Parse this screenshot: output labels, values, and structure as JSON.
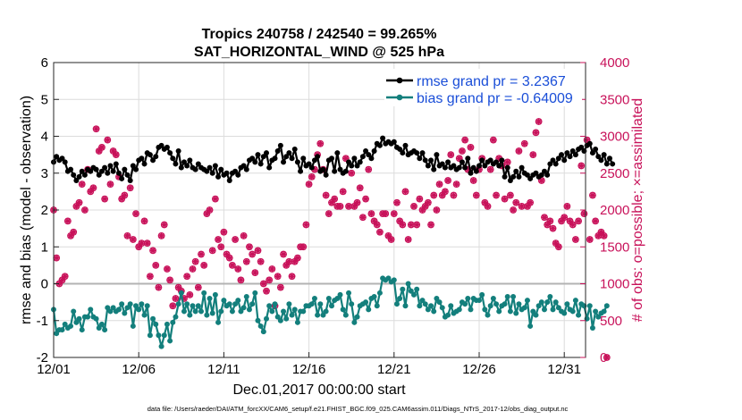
{
  "chart_data": {
    "type": "line",
    "title_line1": "Tropics 240758 / 242540 = 99.265%",
    "title_line2": "SAT_HORIZONTAL_WIND @ 525 hPa",
    "xlabel": "Dec.01,2017 00:00:00 start",
    "ylabel_left": "rmse and bias (model - observation)",
    "ylabel_right": "# of obs: o=possible; ×=assimilated",
    "footnote": "data file: /Users/raeder/DAI/ATM_forcXX/CAM6_setup/f.e21.FHIST_BGC.f09_025.CAM6assim.011/Diags_NTrS_2017-12/obs_diag_output.nc",
    "x_tick_labels": [
      "12/01",
      "12/06",
      "12/11",
      "12/16",
      "12/21",
      "12/26",
      "12/31"
    ],
    "x_tick_days": [
      0,
      5,
      10,
      15,
      20,
      25,
      30
    ],
    "xlim_days": [
      0,
      31.25
    ],
    "ylim_left": [
      -2,
      6
    ],
    "yticks_left": [
      "-2",
      "-1",
      "0",
      "1",
      "2",
      "3",
      "4",
      "5",
      "6"
    ],
    "ylim_right": [
      0,
      4000
    ],
    "yticks_right": [
      "0",
      "500",
      "1000",
      "1500",
      "2000",
      "2500",
      "3000",
      "3500",
      "4000"
    ],
    "zero_line": 0,
    "legend": {
      "position": "top-right",
      "rmse_label": "rmse grand pr = 3.2367",
      "bias_label": "bias grand pr = -0.64009"
    },
    "colors": {
      "rmse": "#000000",
      "bias": "#137f7c",
      "obs": "#c8125a",
      "zero_line": "#b3b3b3",
      "grid": "#dcdcdc",
      "legend_text": "#1a4ed8"
    },
    "series": [
      {
        "name": "rmse",
        "values": [
          3.3,
          3.45,
          3.35,
          3.4,
          3.3,
          3.05,
          3.1,
          2.95,
          2.8,
          2.9,
          3.05,
          2.95,
          3.1,
          3.05,
          3.15,
          3.1,
          2.95,
          3.05,
          3.15,
          3.0,
          3.2,
          3.05,
          3.25,
          3.0,
          2.85,
          3.1,
          2.95,
          2.8,
          3.2,
          3.1,
          3.35,
          3.4,
          3.25,
          3.55,
          3.5,
          3.35,
          3.45,
          3.7,
          3.75,
          3.65,
          3.7,
          3.55,
          3.4,
          3.25,
          3.6,
          3.15,
          3.3,
          3.2,
          3.35,
          3.15,
          3.1,
          3.25,
          3.15,
          3.1,
          3.05,
          3.15,
          3.0,
          3.2,
          2.9,
          3.1,
          2.95,
          3.0,
          2.8,
          3.0,
          3.05,
          2.95,
          3.15,
          3.2,
          3.1,
          3.35,
          3.4,
          3.3,
          3.5,
          3.25,
          3.45,
          3.55,
          3.15,
          3.35,
          3.4,
          3.6,
          3.75,
          3.3,
          3.45,
          3.55,
          3.4,
          3.65,
          3.3,
          3.05,
          3.4,
          3.2,
          3.25,
          3.15,
          3.35,
          3.45,
          3.05,
          3.1,
          2.95,
          3.35,
          3.4,
          3.05,
          3.55,
          3.1,
          3.0,
          3.05,
          3.3,
          3.2,
          3.4,
          3.2,
          3.3,
          3.45,
          3.6,
          3.5,
          3.4,
          3.6,
          3.8,
          3.75,
          3.95,
          3.8,
          3.85,
          3.8,
          3.85,
          3.7,
          3.65,
          3.55,
          3.75,
          3.5,
          3.55,
          3.6,
          3.55,
          3.4,
          3.55,
          3.35,
          3.2,
          3.35,
          3.1,
          3.5,
          3.2,
          3.25,
          3.15,
          3.3,
          3.15,
          3.2,
          3.1,
          3.15,
          3.3,
          3.15,
          3.4,
          3.0,
          3.15,
          3.05,
          3.2,
          3.35,
          3.2,
          3.3,
          3.35,
          3.25,
          3.3,
          3.2,
          3.35,
          2.9,
          3.15,
          2.8,
          2.9,
          3.05,
          2.9,
          3.15,
          3.0,
          2.95,
          2.85,
          2.95,
          3.0,
          2.9,
          2.95,
          3.05,
          2.95,
          3.25,
          3.35,
          3.25,
          3.4,
          3.5,
          3.35,
          3.55,
          3.45,
          3.6,
          3.5,
          3.65,
          3.7,
          3.6,
          3.75,
          3.8,
          3.55,
          3.65,
          3.45,
          3.35,
          3.5,
          3.25,
          3.4,
          3.25
        ]
      },
      {
        "name": "bias",
        "values": [
          -0.7,
          -1.35,
          -1.25,
          -1.25,
          -1.1,
          -1.2,
          -1.15,
          -0.75,
          -1.05,
          -0.95,
          -1.25,
          -0.9,
          -0.9,
          -0.7,
          -0.9,
          -0.95,
          -1.2,
          -1.1,
          -1.25,
          -0.65,
          -0.75,
          -0.65,
          -0.75,
          -0.7,
          -0.55,
          -0.8,
          -0.65,
          -0.55,
          -1.15,
          -0.6,
          -0.7,
          -0.55,
          -0.85,
          -0.6,
          -1.4,
          -0.95,
          -1.1,
          -1.4,
          -1.7,
          -1.4,
          -1.1,
          -1.55,
          -1.05,
          -0.9,
          -0.55,
          -0.25,
          -0.75,
          -0.55,
          -0.85,
          -0.6,
          -0.75,
          -0.6,
          -0.75,
          -0.25,
          -0.85,
          -0.4,
          -0.8,
          -0.3,
          -1.05,
          -0.75,
          -0.45,
          -0.6,
          -0.55,
          -0.75,
          -0.55,
          -0.45,
          -0.75,
          -0.65,
          -0.35,
          -0.7,
          -0.55,
          -0.25,
          -1.0,
          -1.15,
          -1.3,
          -0.95,
          -0.6,
          -0.75,
          -0.55,
          -0.9,
          -1.0,
          -0.75,
          -0.95,
          -0.55,
          -0.85,
          -0.7,
          -1.05,
          -0.75,
          -0.75,
          -0.6,
          -0.6,
          -0.55,
          -0.4,
          -0.85,
          -0.55,
          -0.85,
          -0.75,
          -0.4,
          -0.6,
          -0.45,
          -0.4,
          -0.3,
          -0.7,
          -0.85,
          -0.25,
          -0.55,
          -1.05,
          -0.9,
          -0.6,
          -0.55,
          -0.5,
          -0.7,
          -0.4,
          -0.35,
          -0.6,
          -0.25,
          0.15,
          0.1,
          0.15,
          0.05,
          0.1,
          -0.55,
          -0.4,
          -0.15,
          -0.6,
          0.0,
          -0.2,
          -0.3,
          -0.15,
          -0.6,
          -0.45,
          -0.55,
          -0.7,
          -0.6,
          -0.75,
          -0.4,
          -0.5,
          -0.65,
          -0.9,
          -0.85,
          -0.6,
          -0.8,
          -0.75,
          -0.7,
          -0.5,
          -0.55,
          -0.4,
          -0.7,
          -0.4,
          -0.45,
          -0.45,
          -0.3,
          -0.7,
          -0.85,
          -0.6,
          -0.4,
          -0.55,
          -0.75,
          -0.6,
          -0.55,
          -0.35,
          -0.75,
          -0.35,
          -0.8,
          -0.55,
          -0.7,
          -0.65,
          -0.45,
          -1.15,
          -0.75,
          -0.85,
          -0.6,
          -0.5,
          -0.7,
          -0.5,
          -0.35,
          -0.7,
          -0.5,
          -0.65,
          -0.75,
          -0.8,
          -0.55,
          -0.7,
          -0.75,
          -0.45,
          -0.85,
          -0.55,
          -0.6,
          -0.95,
          -0.6,
          -1.2,
          -0.75,
          -0.9,
          -0.8,
          -0.75,
          -0.6
        ]
      },
      {
        "name": "obs_count",
        "values": [
          2000,
          1350,
          1000,
          1050,
          1100,
          1850,
          1650,
          1700,
          2050,
          2100,
          2350,
          2000,
          2550,
          2250,
          2300,
          3100,
          2800,
          2850,
          2150,
          2950,
          2350,
          2800,
          2750,
          2450,
          2150,
          2200,
          1650,
          2300,
          1600,
          1950,
          1500,
          1550,
          1850,
          1550,
          1100,
          1450,
          1250,
          950,
          1650,
          1800,
          1200,
          1050,
          700,
          800,
          950,
          900,
          800,
          1100,
          850,
          1200,
          1300,
          950,
          1400,
          1250,
          1950,
          2000,
          1450,
          2150,
          1600,
          1500,
          1700,
          1400,
          1350,
          1250,
          1600,
          1200,
          1050,
          1650,
          1300,
          1500,
          1400,
          1150,
          1450,
          1300,
          1000,
          900,
          1050,
          1200,
          700,
          1100,
          950,
          1400,
          1250,
          1300,
          1100,
          1300,
          1350,
          1500,
          1500,
          1800,
          2350,
          2450,
          2550,
          2750,
          2900,
          2550,
          2200,
          1950,
          2100,
          2150,
          2050,
          2050,
          2250,
          2700,
          2050,
          2500,
          2050,
          2100,
          2300,
          1900,
          2150,
          2550,
          1950,
          1850,
          1800,
          1700,
          1950,
          1950,
          1650,
          1600,
          1950,
          2100,
          1850,
          1800,
          2250,
          1600,
          1800,
          2050,
          1800,
          2150,
          2000,
          2050,
          2100,
          1800,
          2200,
          2000,
          2350,
          2200,
          2250,
          2400,
          2750,
          2200,
          2350,
          2700,
          2800,
          2950,
          2550,
          2850,
          2400,
          2200,
          2550,
          2700,
          2100,
          2050,
          2550,
          2950,
          2200,
          2700,
          2600,
          2150,
          2650,
          2200,
          2000,
          2100,
          2800,
          2050,
          2900,
          2050,
          2100,
          2750,
          3050,
          3200,
          2400,
          1900,
          1800,
          1850,
          1750,
          1550,
          1500,
          1850,
          1900,
          2050,
          1850,
          1800,
          1600,
          1850,
          2600,
          1950,
          2950,
          1600,
          2200,
          1850,
          1650,
          1700,
          1650,
          0
        ]
      }
    ]
  }
}
